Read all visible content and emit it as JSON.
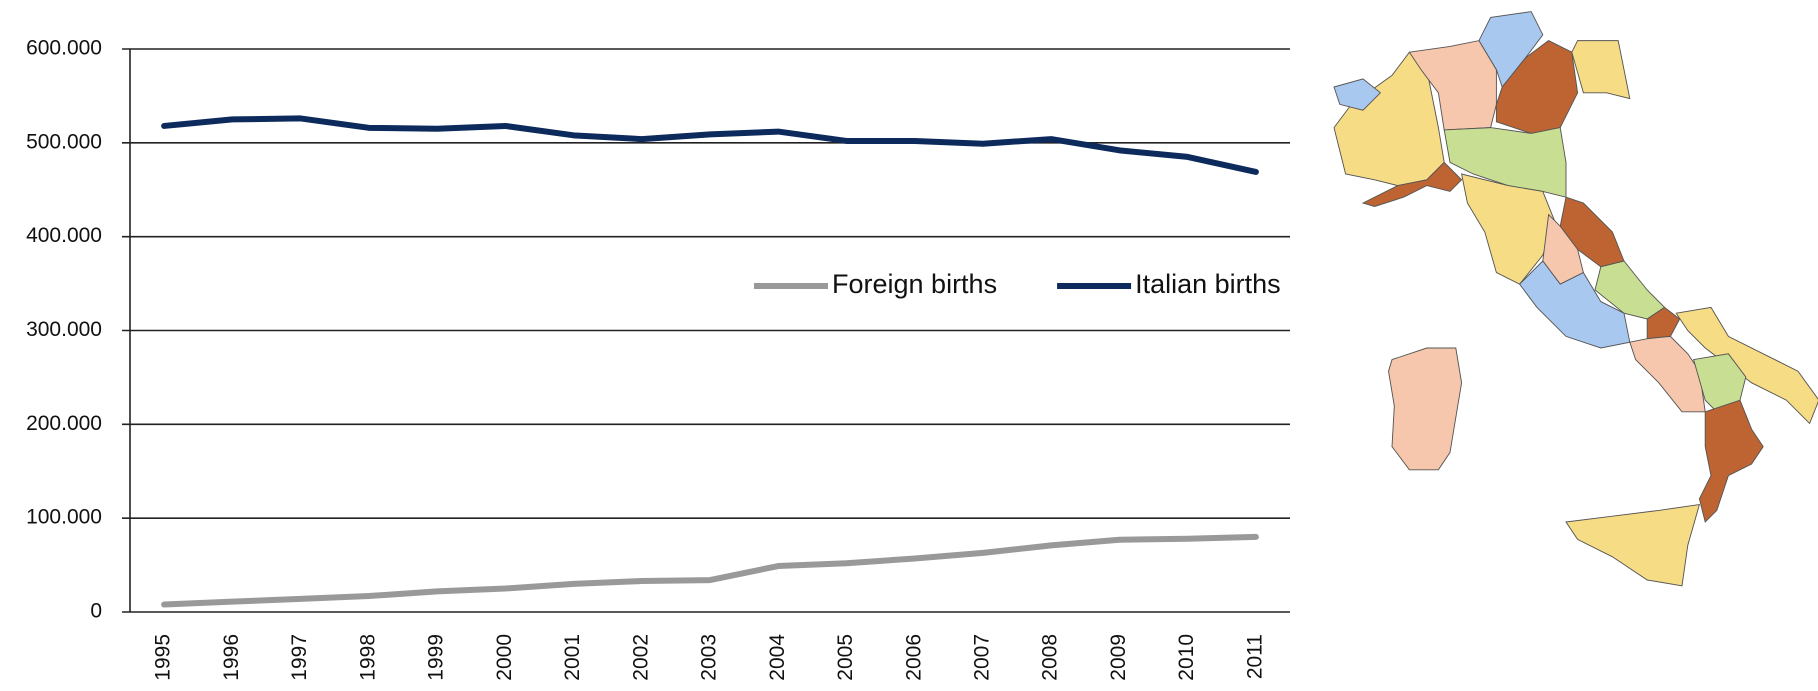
{
  "chart_data": {
    "type": "line",
    "categories": [
      "1995",
      "1996",
      "1997",
      "1998",
      "1999",
      "2000",
      "2001",
      "2002",
      "2003",
      "2004",
      "2005",
      "2006",
      "2007",
      "2008",
      "2009",
      "2010",
      "2011"
    ],
    "series": [
      {
        "name": "Foreign births",
        "color": "#999999",
        "values": [
          8000,
          11000,
          14000,
          17000,
          22000,
          25000,
          30000,
          33000,
          34000,
          49000,
          52000,
          57000,
          63000,
          71000,
          77000,
          78000,
          80000
        ]
      },
      {
        "name": "Italian births",
        "color": "#0d2a5c",
        "values": [
          518000,
          525000,
          526000,
          516000,
          515000,
          518000,
          508000,
          504000,
          509000,
          512000,
          502000,
          502000,
          499000,
          504000,
          492000,
          485000,
          469000
        ]
      }
    ],
    "ylim": [
      0,
      600000
    ],
    "yticks": [
      0,
      {
        "value": 100000,
        "label": "100.000"
      },
      {
        "value": 200000,
        "label": "200.000"
      },
      {
        "value": 300000,
        "label": "300.000"
      },
      {
        "value": 400000,
        "label": "400.000"
      },
      {
        "value": 500000,
        "label": "500.000"
      },
      {
        "value": 600000,
        "label": "600.000"
      }
    ],
    "grid": true,
    "legend": "right"
  }
}
